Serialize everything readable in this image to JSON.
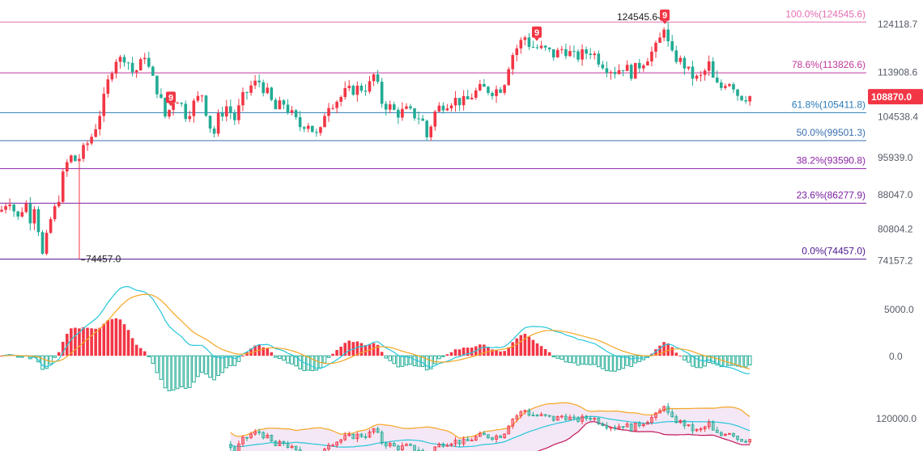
{
  "colors": {
    "up": "#f23645",
    "down": "#22ab94",
    "ema_fast": "#26c6da",
    "ema_slow": "#f5a623",
    "boll_upper": "#f5a623",
    "boll_mid": "#26c6da",
    "boll_lower": "#c2185b",
    "boll_fill": "#f3e5f5",
    "price_tag": "#f23645",
    "axis_text": "#555b66"
  },
  "chart_data": {
    "type": "candlestick",
    "price_axis": {
      "ticks": [
        "124118.7",
        "113908.6",
        "104538.4",
        "95939.0",
        "88047.0",
        "80804.2",
        "74157.2"
      ],
      "range": [
        72000,
        127500
      ]
    },
    "fib_levels": [
      {
        "label": "100.0%(124545.6)",
        "value": 124545.6,
        "color": "#e56fb0"
      },
      {
        "label": "78.6%(113826.6)",
        "value": 113826.6,
        "color": "#c0389a"
      },
      {
        "label": "61.8%(105411.8)",
        "value": 105411.8,
        "color": "#2b7bb9"
      },
      {
        "label": "50.0%(99501.3)",
        "value": 99501.3,
        "color": "#3a6fb0"
      },
      {
        "label": "38.2%(93590.8)",
        "value": 93590.8,
        "color": "#8e24aa"
      },
      {
        "label": "23.6%(86277.9)",
        "value": 86277.9,
        "color": "#7b1fa2"
      },
      {
        "label": "0.0%(74457.0)",
        "value": 74457.0,
        "color": "#4a148c"
      }
    ],
    "current_price": "108870.0",
    "annotations": {
      "high_label": "124545.6",
      "low_label": "74457.0"
    },
    "td_markers": [
      {
        "index": 42,
        "label": "9"
      },
      {
        "index": 135,
        "label": "9"
      },
      {
        "index": 167,
        "label": "9"
      }
    ],
    "close_path": [
      [
        0,
        84500
      ],
      [
        5,
        85500
      ],
      [
        10,
        87500
      ],
      [
        15,
        86500
      ],
      [
        20,
        82500
      ],
      [
        26,
        84000
      ],
      [
        30,
        87500
      ],
      [
        37,
        83000
      ],
      [
        40,
        84500
      ],
      [
        44,
        87000
      ],
      [
        48,
        80000
      ],
      [
        52,
        74800
      ],
      [
        60,
        80500
      ],
      [
        64,
        84000
      ],
      [
        70,
        85500
      ],
      [
        75,
        89500
      ],
      [
        80,
        94000
      ],
      [
        88,
        96000
      ],
      [
        95,
        95000
      ],
      [
        110,
        99500
      ],
      [
        115,
        101000
      ],
      [
        120,
        103500
      ],
      [
        128,
        108000
      ],
      [
        135,
        113000
      ],
      [
        142,
        117000
      ],
      [
        148,
        116500
      ],
      [
        155,
        117500
      ],
      [
        165,
        113500
      ],
      [
        175,
        116000
      ],
      [
        180,
        118500
      ],
      [
        185,
        113500
      ],
      [
        190,
        112000
      ],
      [
        196,
        109500
      ],
      [
        205,
        104000
      ],
      [
        213,
        108000
      ],
      [
        220,
        108500
      ],
      [
        230,
        104800
      ],
      [
        240,
        107500
      ],
      [
        250,
        109500
      ],
      [
        258,
        103000
      ],
      [
        265,
        101000
      ],
      [
        270,
        104500
      ],
      [
        280,
        106800
      ],
      [
        290,
        104000
      ],
      [
        300,
        108500
      ],
      [
        310,
        111000
      ],
      [
        320,
        112000
      ],
      [
        330,
        109500
      ],
      [
        340,
        106000
      ],
      [
        350,
        107500
      ],
      [
        360,
        105000
      ],
      [
        370,
        102500
      ],
      [
        380,
        103500
      ],
      [
        390,
        100500
      ],
      [
        395,
        100500
      ],
      [
        400,
        105000
      ],
      [
        405,
        107300
      ],
      [
        410,
        107500
      ],
      [
        420,
        108500
      ],
      [
        425,
        109500
      ],
      [
        440,
        110500
      ],
      [
        455,
        110800
      ],
      [
        460,
        112500
      ],
      [
        462,
        113500
      ],
      [
        472,
        107500
      ],
      [
        482,
        106500
      ],
      [
        490,
        105200
      ],
      [
        502,
        105800
      ],
      [
        510,
        105000
      ],
      [
        518,
        104500
      ],
      [
        522,
        103500
      ],
      [
        528,
        99800
      ],
      [
        535,
        105000
      ],
      [
        545,
        107000
      ],
      [
        560,
        108200
      ],
      [
        575,
        107500
      ],
      [
        585,
        109500
      ],
      [
        595,
        110500
      ],
      [
        610,
        110000
      ],
      [
        622,
        111000
      ],
      [
        625,
        114000
      ],
      [
        632,
        117500
      ],
      [
        640,
        119500
      ],
      [
        648,
        121500
      ],
      [
        655,
        119500
      ],
      [
        665,
        119000
      ],
      [
        675,
        118500
      ],
      [
        685,
        117500
      ],
      [
        695,
        119000
      ],
      [
        700,
        118500
      ],
      [
        710,
        117000
      ],
      [
        720,
        117800
      ],
      [
        730,
        118500
      ],
      [
        740,
        116500
      ],
      [
        750,
        115000
      ],
      [
        760,
        114200
      ],
      [
        770,
        115200
      ],
      [
        780,
        113800
      ],
      [
        790,
        115500
      ],
      [
        800,
        117300
      ],
      [
        810,
        119000
      ],
      [
        815,
        120800
      ],
      [
        820,
        124000
      ],
      [
        828,
        117500
      ],
      [
        835,
        117000
      ],
      [
        845,
        115500
      ],
      [
        852,
        113500
      ],
      [
        860,
        112500
      ],
      [
        868,
        113000
      ],
      [
        875,
        116000
      ],
      [
        882,
        111500
      ],
      [
        890,
        110500
      ],
      [
        898,
        112500
      ],
      [
        905,
        111500
      ],
      [
        912,
        109000
      ],
      [
        918,
        108800
      ],
      [
        925,
        108870
      ]
    ],
    "macd": {
      "zero_label": "0.0",
      "upper_label": "5000.0",
      "range": [
        -3500,
        6500
      ]
    },
    "boll": {
      "tick_label": "120000.0",
      "range": [
        98000,
        124000
      ]
    }
  }
}
